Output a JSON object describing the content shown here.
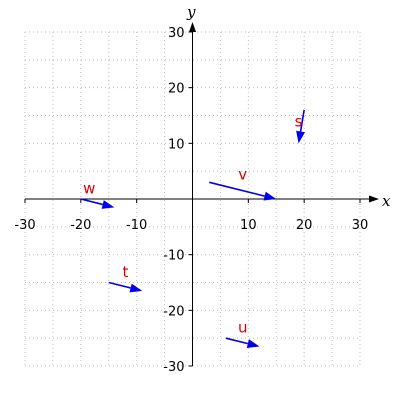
{
  "chart_data": {
    "type": "vector",
    "xlabel": "x",
    "ylabel": "y",
    "xlim": [
      -30,
      30
    ],
    "ylim": [
      -30,
      30
    ],
    "xticks": [
      -30,
      -20,
      -10,
      10,
      20,
      30
    ],
    "yticks": [
      -30,
      -20,
      -10,
      10,
      20,
      30
    ],
    "grid": true,
    "vector_color": "#0000ee",
    "label_color": "#dd0000",
    "vectors": [
      {
        "label": "w",
        "start": [
          -20,
          0
        ],
        "end": [
          -14,
          -1.5
        ],
        "label_pos": [
          -18.5,
          1
        ]
      },
      {
        "label": "v",
        "start": [
          3,
          3
        ],
        "end": [
          15,
          0
        ],
        "label_pos": [
          9,
          3.5
        ]
      },
      {
        "label": "s",
        "start": [
          20,
          16
        ],
        "end": [
          19,
          10
        ],
        "label_pos": [
          19,
          13
        ]
      },
      {
        "label": "t",
        "start": [
          -15,
          -15
        ],
        "end": [
          -9,
          -16.5
        ],
        "label_pos": [
          -12,
          -14
        ]
      },
      {
        "label": "u",
        "start": [
          6,
          -25
        ],
        "end": [
          12,
          -26.5
        ],
        "label_pos": [
          9,
          -24
        ]
      }
    ]
  }
}
